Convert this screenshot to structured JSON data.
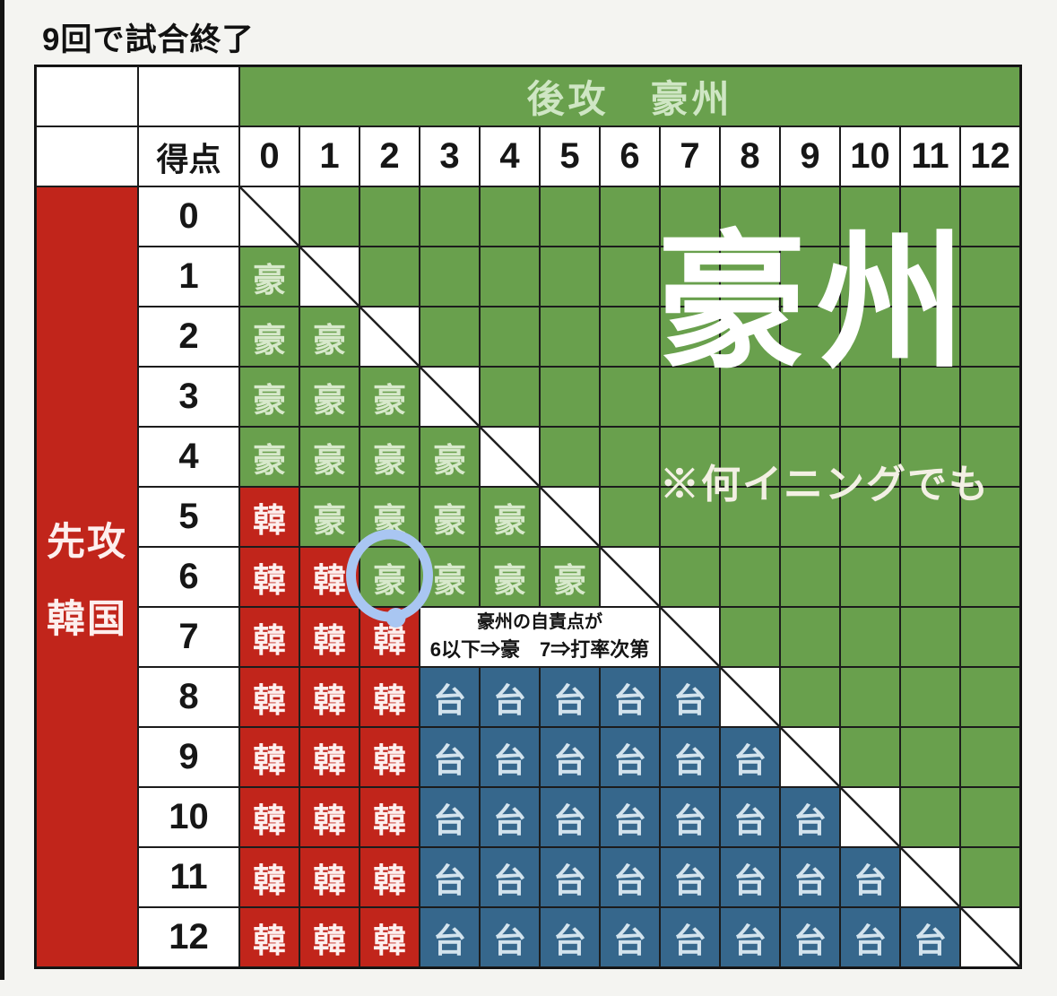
{
  "title": "9回で試合終了",
  "table": {
    "top_header": "後攻　豪州",
    "score_header": "得点",
    "columns": [
      "0",
      "1",
      "2",
      "3",
      "4",
      "5",
      "6",
      "7",
      "8",
      "9",
      "10",
      "11",
      "12"
    ],
    "rows": [
      "0",
      "1",
      "2",
      "3",
      "4",
      "5",
      "6",
      "7",
      "8",
      "9",
      "10",
      "11",
      "12"
    ],
    "left_label": [
      "先攻",
      "韓国"
    ],
    "legend_chars": {
      "A": "豪",
      "K": "韓",
      "T": "台"
    },
    "grid": [
      [
        "D",
        "",
        "",
        "",
        "",
        "",
        "",
        "",
        "",
        "",
        "",
        "",
        ""
      ],
      [
        "A",
        "D",
        "",
        "",
        "",
        "",
        "",
        "",
        "",
        "",
        "",
        "",
        ""
      ],
      [
        "A",
        "A",
        "D",
        "",
        "",
        "",
        "",
        "",
        "",
        "",
        "",
        "",
        ""
      ],
      [
        "A",
        "A",
        "A",
        "D",
        "",
        "",
        "",
        "",
        "",
        "",
        "",
        "",
        ""
      ],
      [
        "A",
        "A",
        "A",
        "A",
        "D",
        "",
        "",
        "",
        "",
        "",
        "",
        "",
        ""
      ],
      [
        "K",
        "A",
        "A",
        "A",
        "A",
        "D",
        "",
        "",
        "",
        "",
        "",
        "",
        ""
      ],
      [
        "K",
        "K",
        "A",
        "A",
        "A",
        "A",
        "D",
        "",
        "",
        "",
        "",
        "",
        ""
      ],
      [
        "K",
        "K",
        "K",
        "N",
        "S",
        "S",
        "S",
        "D",
        "",
        "",
        "",
        "",
        ""
      ],
      [
        "K",
        "K",
        "K",
        "T",
        "T",
        "T",
        "T",
        "T",
        "D",
        "",
        "",
        "",
        ""
      ],
      [
        "K",
        "K",
        "K",
        "T",
        "T",
        "T",
        "T",
        "T",
        "T",
        "D",
        "",
        "",
        ""
      ],
      [
        "K",
        "K",
        "K",
        "T",
        "T",
        "T",
        "T",
        "T",
        "T",
        "T",
        "D",
        "",
        ""
      ],
      [
        "K",
        "K",
        "K",
        "T",
        "T",
        "T",
        "T",
        "T",
        "T",
        "T",
        "T",
        "D",
        ""
      ],
      [
        "K",
        "K",
        "K",
        "T",
        "T",
        "T",
        "T",
        "T",
        "T",
        "T",
        "T",
        "T",
        "D"
      ]
    ],
    "note": {
      "line1": "豪州の自責点が",
      "line2": "6以下⇒豪　7⇒打率次第"
    },
    "annotation_circle": {
      "row": 6,
      "col": 2
    }
  },
  "overlay": {
    "big_label": "豪州",
    "inning_note": "※何イニングでも"
  },
  "colors": {
    "green": "#69a04d",
    "red": "#c1251b",
    "blue": "#36678c",
    "green_text": "#d8e9cc",
    "red_text": "#fdefee",
    "blue_text": "#d3e3ed",
    "header_text": "#cfe6c4",
    "circle": "#a9c6f2",
    "grid_line": "#1c1c1c"
  }
}
